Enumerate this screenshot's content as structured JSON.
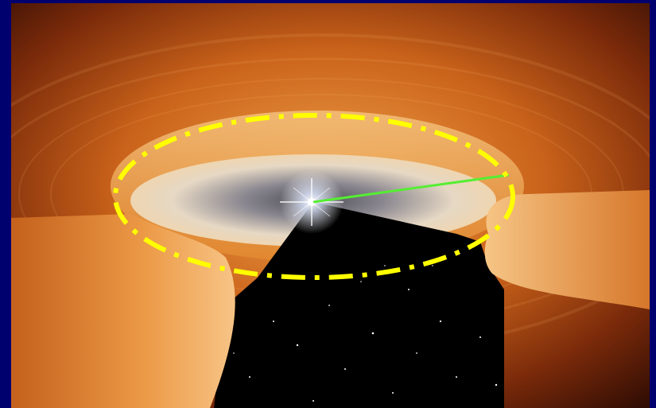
{
  "scene": {
    "subject": "protoplanetary-disk-illustration",
    "frame_color": "#00006e",
    "disk_color": "#d9741f",
    "gap_color": "#000000",
    "star_color": "#ffffff",
    "annotations": {
      "ellipse": {
        "color": "#ffff00",
        "style": "dash-dot"
      },
      "radius_line": {
        "color": "#55ee33"
      }
    }
  }
}
